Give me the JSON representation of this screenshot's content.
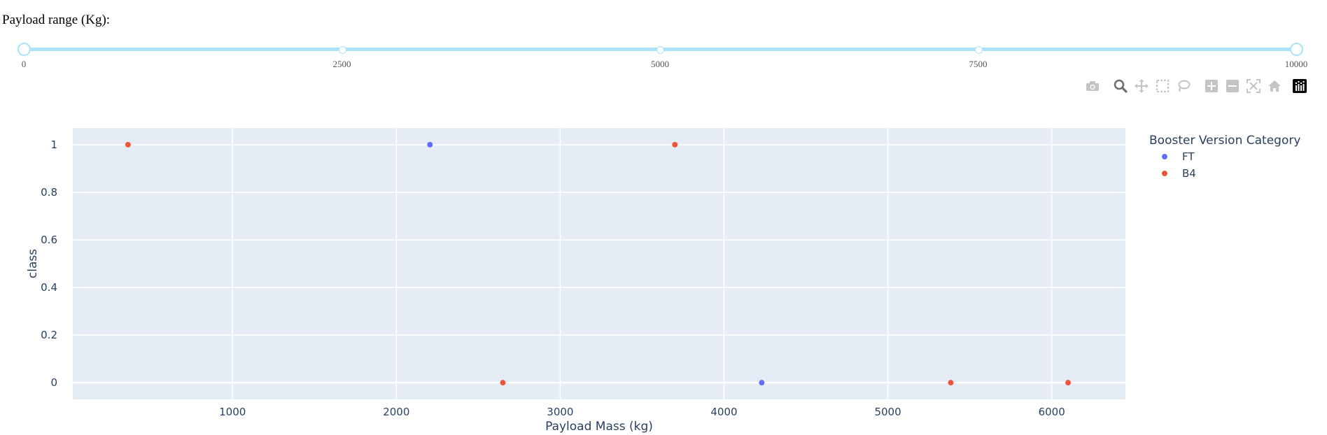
{
  "slider": {
    "label": "Payload range (Kg):",
    "min": 0,
    "max": 10000,
    "range": [
      0,
      10000
    ],
    "marks": [
      "0",
      "2500",
      "5000",
      "7500",
      "10000"
    ],
    "accent": "#abe2fb"
  },
  "modebar": {
    "icons": [
      "camera-icon",
      "zoom-icon",
      "pan-icon",
      "box-select-icon",
      "lasso-select-icon",
      "zoom-in-icon",
      "zoom-out-icon",
      "autoscale-icon",
      "reset-axes-icon",
      "plotly-logo-icon"
    ]
  },
  "chart_data": {
    "type": "scatter",
    "xlabel": "Payload Mass (kg)",
    "ylabel": "class",
    "xlim": [
      25,
      6450
    ],
    "ylim": [
      -0.07,
      1.07
    ],
    "xticks": [
      1000,
      2000,
      3000,
      4000,
      5000,
      6000
    ],
    "yticks": [
      0,
      0.2,
      0.4,
      0.6,
      0.8,
      1
    ],
    "grid": true,
    "plot_bg": "#e5ecf6",
    "legend": {
      "title": "Booster Version Category",
      "position": "right"
    },
    "series": [
      {
        "name": "FT",
        "color": "#636efa",
        "x": [
          2205,
          4230
        ],
        "y": [
          1,
          0
        ]
      },
      {
        "name": "B4",
        "color": "#ef553b",
        "x": [
          362,
          3700,
          2650,
          5384,
          6100
        ],
        "y": [
          1,
          1,
          0,
          0,
          0
        ]
      }
    ]
  }
}
